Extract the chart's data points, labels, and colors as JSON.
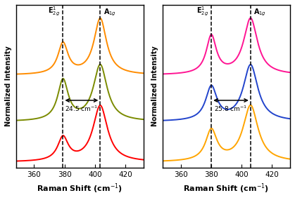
{
  "xlim": [
    348,
    432
  ],
  "xlabel": "Raman Shift (cm$^{-1}$)",
  "ylabel": "Normalized Intensity",
  "peak1_E2g": 379.0,
  "peak1_A1g": 403.5,
  "peak2_E2g": 380.2,
  "peak2_A1g": 406.0,
  "panel1_colors": [
    "#FF0000",
    "#7B8B00",
    "#FF8C00"
  ],
  "panel2_colors": [
    "#FFA500",
    "#2244CC",
    "#FF1493"
  ],
  "panel1_label": "24.5 cm$^{-1}$",
  "panel2_label": "25.8 cm$^{-1}$",
  "panel1_offsets": [
    0.0,
    0.72,
    1.55
  ],
  "panel2_offsets": [
    0.0,
    0.72,
    1.55
  ],
  "background_color": "#ffffff",
  "e2g_label": "E$^1_{2g}$",
  "a1g_label": "A$_{1g}$",
  "figsize": [
    4.19,
    2.85
  ],
  "dpi": 100
}
